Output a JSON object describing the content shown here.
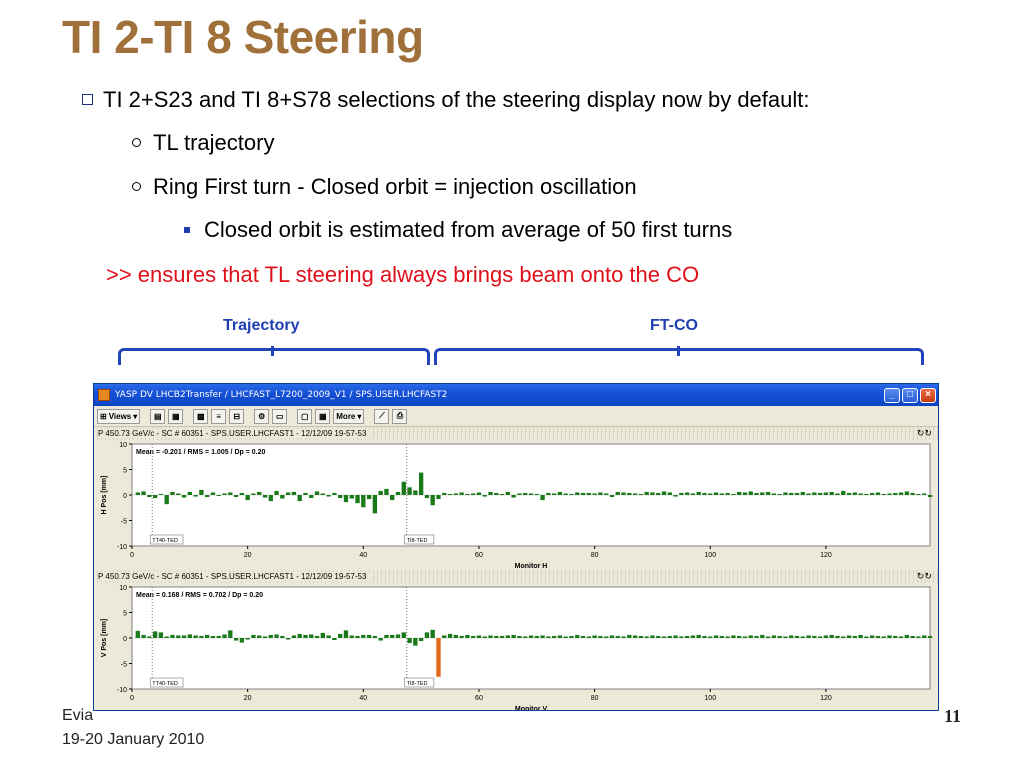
{
  "slide": {
    "title": "TI 2-TI 8 Steering",
    "bullets": [
      {
        "level": 1,
        "text": "TI 2+S23 and TI 8+S78 selections of the steering display now by default:"
      },
      {
        "level": 2,
        "text": "TL trajectory"
      },
      {
        "level": 2,
        "text": "Ring First turn - Closed orbit = injection oscillation"
      },
      {
        "level": 3,
        "text": "Closed orbit is estimated from average of 50 first turns"
      }
    ],
    "note": ">> ensures that TL steering always brings beam onto the CO",
    "labels": {
      "trajectory": "Trajectory",
      "ftco": "FT-CO"
    },
    "footer_author": "Evia",
    "footer_date": "19-20 January 2010",
    "page_number": "11"
  },
  "window": {
    "title": "YASP DV LHCB2Transfer / LHCFAST_L7200_2009_V1 / SPS.USER.LHCFAST2",
    "toolbar": {
      "views_label": "Views",
      "more_label": "More"
    },
    "panels": [
      {
        "header": "P 450.73 GeV/c - SC # 60351 - SPS.USER.LHCFAST1 - 12/12/09 19-57-53",
        "stats": "Mean =  -0.201 / RMS =   1.005 / Dp =   0.20",
        "ylabel": "H Pos [mm]",
        "xlabel": "Monitor H",
        "markers": [
          "TT40-TED",
          "TI8-TED"
        ]
      },
      {
        "header": "P 450.73 GeV/c - SC # 60351 - SPS.USER.LHCFAST1 - 12/12/09 19-57-53",
        "stats": "Mean =   0.168 / RMS =   0.702 / Dp =   0.20",
        "ylabel": "V Pos [mm]",
        "xlabel": "Monitor V",
        "markers": [
          "TT40-TED",
          "TI8-TED"
        ]
      }
    ]
  },
  "chart_data": [
    {
      "type": "bar",
      "xlabel": "Monitor H",
      "ylabel": "H Pos [mm]",
      "xlim": [
        0,
        138
      ],
      "ylim": [
        -10,
        10
      ],
      "x_ticks": [
        0,
        20,
        40,
        60,
        80,
        100,
        120
      ],
      "y_ticks": [
        10,
        5,
        0,
        -5,
        -10
      ],
      "bar_color": "#1a7a1a",
      "highlight_color": "#e06a1a",
      "markers_x": [
        3.5,
        47.5
      ],
      "series": [
        {
          "values": [
            0.5,
            0.7,
            -0.4,
            -0.6,
            0.2,
            -1.8,
            0.6,
            0.3,
            -0.5,
            0.6,
            -0.3,
            1.0,
            -0.4,
            0.5,
            -0.2,
            0.3,
            0.5,
            -0.4,
            0.4,
            -1.0,
            0.3,
            0.6,
            -0.5,
            -1.2,
            0.8,
            -0.7,
            0.5,
            0.6,
            -1.2,
            0.4,
            -0.6,
            0.7,
            0.3,
            -0.3,
            0.4,
            -0.6,
            -1.4,
            -0.7,
            -1.6,
            -2.4,
            -0.8,
            -3.6,
            0.8,
            1.2,
            -1.0,
            0.6,
            2.6,
            1.5,
            0.9,
            4.4,
            -0.6,
            -2.0,
            -0.8,
            0.4,
            0.2,
            0.3,
            0.5,
            0.2,
            0.3,
            0.5,
            -0.3,
            0.6,
            0.4,
            0.2,
            0.6,
            -0.5,
            0.3,
            0.4,
            0.3,
            0.2,
            -1.0,
            0.4,
            0.3,
            0.6,
            0.3,
            0.2,
            0.5,
            0.4,
            0.4,
            0.3,
            0.5,
            0.3,
            -0.4,
            0.6,
            0.5,
            0.4,
            0.3,
            0.2,
            0.6,
            0.5,
            0.4,
            0.7,
            0.5,
            -0.3,
            0.4,
            0.5,
            0.3,
            0.6,
            0.4,
            0.3,
            0.5,
            0.3,
            0.4,
            0.2,
            0.6,
            0.5,
            0.7,
            0.4,
            0.5,
            0.6,
            0.3,
            0.2,
            0.5,
            0.4,
            0.4,
            0.6,
            0.3,
            0.5,
            0.4,
            0.5,
            0.6,
            0.3,
            0.8,
            0.4,
            0.5,
            0.3,
            0.2,
            0.4,
            0.5,
            0.2,
            0.3,
            0.4,
            0.5,
            0.7,
            0.4,
            0.2,
            0.3,
            -0.4
          ]
        }
      ]
    },
    {
      "type": "bar",
      "xlabel": "Monitor V",
      "ylabel": "V Pos [mm]",
      "xlim": [
        0,
        138
      ],
      "ylim": [
        -10,
        10
      ],
      "x_ticks": [
        0,
        20,
        40,
        60,
        80,
        100,
        120
      ],
      "y_ticks": [
        10,
        5,
        0,
        -5,
        -10
      ],
      "bar_color": "#1a7a1a",
      "highlight_color": "#e06a1a",
      "markers_x": [
        3.5,
        47.5
      ],
      "highlight_index": 52,
      "series": [
        {
          "values": [
            1.4,
            0.6,
            0.3,
            1.3,
            1.1,
            0.3,
            0.6,
            0.5,
            0.5,
            0.7,
            0.5,
            0.4,
            0.6,
            0.4,
            0.4,
            0.7,
            1.5,
            -0.5,
            -0.9,
            -0.3,
            0.6,
            0.5,
            0.3,
            0.6,
            0.7,
            0.4,
            -0.3,
            0.5,
            0.8,
            0.6,
            0.7,
            0.4,
            1.0,
            0.5,
            -0.4,
            0.8,
            1.5,
            0.5,
            0.4,
            0.6,
            0.6,
            0.4,
            -0.5,
            0.6,
            0.6,
            0.7,
            1.1,
            -1.0,
            -1.5,
            -0.6,
            1.1,
            1.6,
            -7.6,
            0.5,
            0.8,
            0.6,
            0.4,
            0.6,
            0.4,
            0.5,
            0.3,
            0.5,
            0.4,
            0.4,
            0.5,
            0.6,
            0.4,
            0.3,
            0.5,
            0.4,
            0.5,
            0.3,
            0.4,
            0.5,
            0.3,
            0.4,
            0.6,
            0.4,
            0.3,
            0.5,
            0.4,
            0.3,
            0.5,
            0.4,
            0.3,
            0.6,
            0.5,
            0.4,
            0.3,
            0.5,
            0.4,
            0.3,
            0.4,
            0.5,
            0.3,
            0.4,
            0.5,
            0.6,
            0.4,
            0.3,
            0.5,
            0.4,
            0.3,
            0.5,
            0.4,
            0.3,
            0.5,
            0.4,
            0.6,
            0.3,
            0.5,
            0.4,
            0.3,
            0.5,
            0.4,
            0.3,
            0.5,
            0.4,
            0.3,
            0.5,
            0.6,
            0.4,
            0.3,
            0.5,
            0.4,
            0.6,
            0.3,
            0.5,
            0.4,
            0.3,
            0.5,
            0.4,
            0.3,
            0.6,
            0.4,
            0.3,
            0.5,
            0.4
          ]
        }
      ]
    }
  ]
}
